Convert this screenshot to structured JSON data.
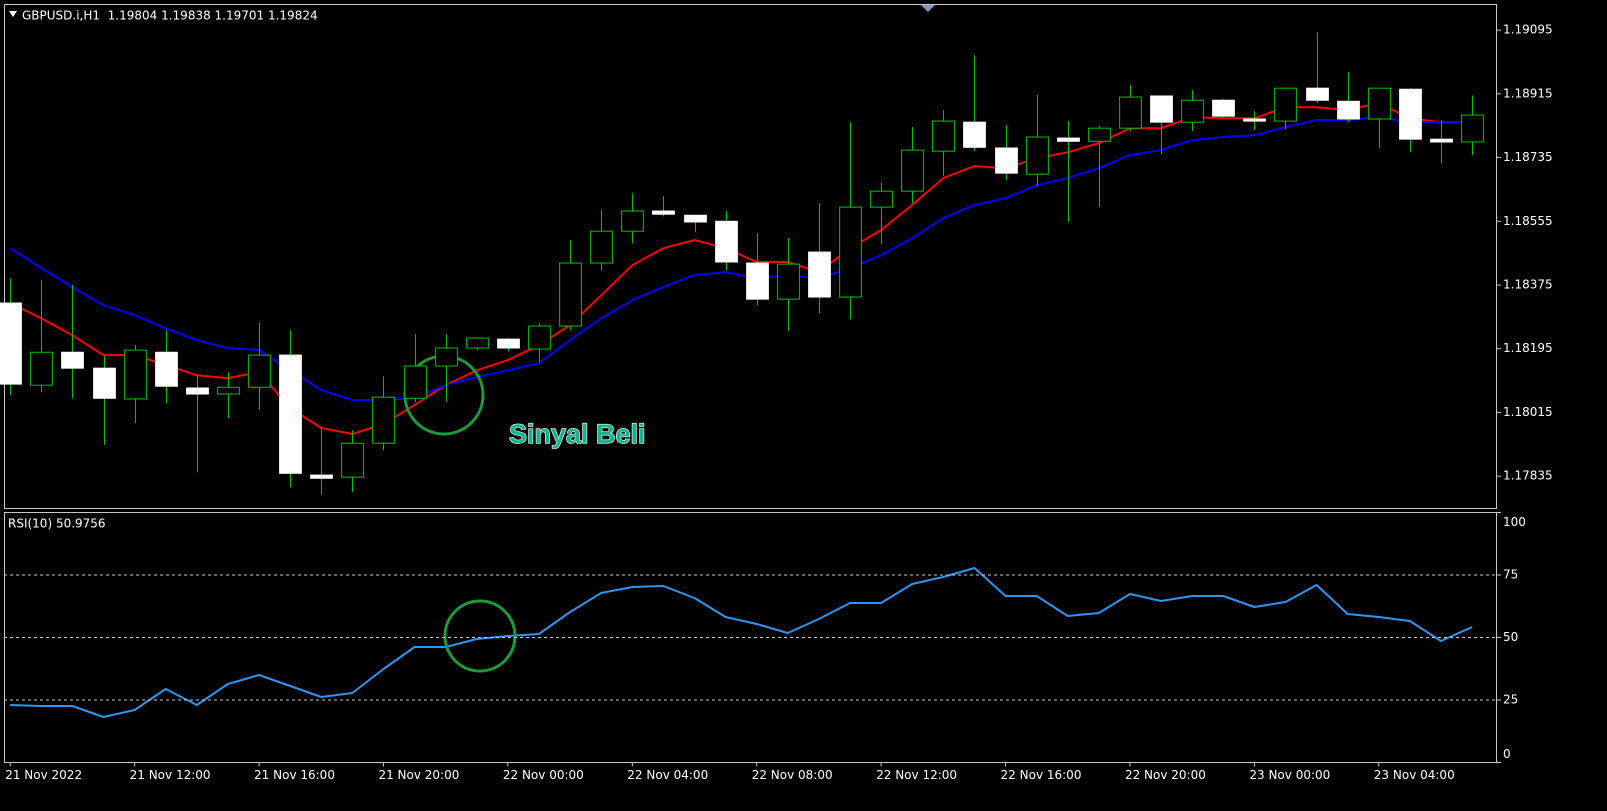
{
  "chart_data": [
    {
      "type": "candlestick",
      "title": "GBPUSD.i,H1  1.19804 1.19838 1.19701 1.19824",
      "annotation": "Sinyal Beli",
      "up_color": "#00c000",
      "down_color": "#ffffff",
      "open": [
        1.18324,
        1.18092,
        1.18185,
        1.1814,
        1.18053,
        1.18185,
        1.18084,
        1.18067,
        1.18086,
        1.18177,
        1.17838,
        1.17832,
        1.17928,
        1.18055,
        1.18146,
        1.18197,
        1.18222,
        1.18194,
        1.18259,
        1.18437,
        1.18527,
        1.18584,
        1.18572,
        1.18555,
        1.18437,
        1.18335,
        1.18468,
        1.18341,
        1.18595,
        1.1864,
        1.18753,
        1.18835,
        1.18762,
        1.18688,
        1.1879,
        1.18781,
        1.18818,
        1.18909,
        1.18835,
        1.18897,
        1.18844,
        1.18838,
        1.18931,
        1.18894,
        1.18844,
        1.18928,
        1.18787,
        1.18779
      ],
      "high": [
        1.18394,
        1.18389,
        1.18375,
        1.18177,
        1.18205,
        1.18247,
        1.1812,
        1.18129,
        1.1827,
        1.18247,
        1.17971,
        1.17965,
        1.18117,
        1.18236,
        1.18236,
        1.18225,
        1.18225,
        1.18267,
        1.18502,
        1.18586,
        1.18634,
        1.18626,
        1.18572,
        1.18584,
        1.18521,
        1.18507,
        1.18606,
        1.18835,
        1.18663,
        1.18821,
        1.18869,
        1.19024,
        1.18827,
        1.18911,
        1.18838,
        1.18824,
        1.1894,
        1.18909,
        1.18926,
        1.189,
        1.18866,
        1.18931,
        1.19089,
        1.18976,
        1.18931,
        1.18931,
        1.18841,
        1.18911
      ],
      "low": [
        1.18064,
        1.18072,
        1.18055,
        1.17923,
        1.17985,
        1.18041,
        1.17846,
        1.17999,
        1.18022,
        1.17804,
        1.17784,
        1.1779,
        1.17908,
        1.18044,
        1.18044,
        1.18191,
        1.18188,
        1.18157,
        1.18247,
        1.18417,
        1.18493,
        1.18569,
        1.18524,
        1.18417,
        1.18318,
        1.18245,
        1.18295,
        1.18279,
        1.1849,
        1.18606,
        1.18683,
        1.18753,
        1.18671,
        1.18654,
        1.18553,
        1.18595,
        1.1881,
        1.18745,
        1.1881,
        1.18849,
        1.18813,
        1.18815,
        1.18889,
        1.18835,
        1.18762,
        1.1875,
        1.18719,
        1.18742
      ],
      "close": [
        1.18095,
        1.18185,
        1.1814,
        1.18055,
        1.18191,
        1.18089,
        1.18067,
        1.18086,
        1.18177,
        1.17843,
        1.17829,
        1.17928,
        1.18058,
        1.18146,
        1.18197,
        1.18225,
        1.18197,
        1.18259,
        1.18437,
        1.18527,
        1.18584,
        1.18575,
        1.18553,
        1.1844,
        1.18335,
        1.18434,
        1.18341,
        1.18595,
        1.1864,
        1.18756,
        1.18838,
        1.18764,
        1.18691,
        1.18793,
        1.18781,
        1.18818,
        1.18906,
        1.18835,
        1.18897,
        1.18852,
        1.18838,
        1.18931,
        1.18897,
        1.18844,
        1.18931,
        1.18787,
        1.18779,
        1.18855
      ],
      "series": [
        {
          "color": "#ff0000",
          "values": [
            1.18324,
            1.18281,
            1.18233,
            1.18177,
            1.18177,
            1.18149,
            1.1812,
            1.18112,
            1.18129,
            1.18027,
            1.17971,
            1.17954,
            1.17982,
            1.18036,
            1.18092,
            1.18134,
            1.18163,
            1.18205,
            1.18262,
            1.18346,
            1.18431,
            1.18479,
            1.18502,
            1.18479,
            1.1844,
            1.1844,
            1.18411,
            1.18479,
            1.1853,
            1.18601,
            1.18677,
            1.18711,
            1.18705,
            1.18733,
            1.1875,
            1.18776,
            1.18818,
            1.18818,
            1.18849,
            1.18846,
            1.18846,
            1.18877,
            1.18877,
            1.18869,
            1.18889,
            1.18846,
            1.18835,
            1.18835
          ]
        },
        {
          "color": "#0000ff",
          "values": [
            1.18479,
            1.18423,
            1.18369,
            1.18318,
            1.1829,
            1.18253,
            1.18219,
            1.18197,
            1.18191,
            1.18134,
            1.18078,
            1.1805,
            1.1805,
            1.18055,
            1.18092,
            1.18115,
            1.18134,
            1.18154,
            1.18219,
            1.18281,
            1.18332,
            1.18369,
            1.18403,
            1.18411,
            1.18394,
            1.18403,
            1.18394,
            1.18423,
            1.18459,
            1.18507,
            1.18564,
            1.18601,
            1.1862,
            1.18657,
            1.18677,
            1.18705,
            1.18742,
            1.18756,
            1.18784,
            1.18793,
            1.18798,
            1.18821,
            1.18841,
            1.18841,
            1.18849,
            1.18835,
            1.18835,
            1.18835
          ]
        }
      ],
      "xlim": [
        -0.2,
        47.8
      ],
      "ylim": [
        1.17745,
        1.19166
      ],
      "yticks": [
        1.17835,
        1.18015,
        1.18195,
        1.18375,
        1.18555,
        1.18735,
        1.18915,
        1.19095
      ],
      "grid": false
    },
    {
      "type": "line",
      "title": "RSI(10) 50.9756",
      "series": [
        {
          "color": "#2f95f0",
          "values": [
            23,
            22.6,
            22.6,
            18.2,
            21,
            29.4,
            23,
            31.4,
            35,
            30.6,
            26.2,
            27.8,
            37.4,
            46.2,
            46.2,
            49.4,
            50.6,
            51.4,
            60.2,
            67.8,
            70.2,
            70.6,
            65.8,
            58.2,
            55.4,
            51.8,
            57.4,
            63.8,
            63.8,
            71.4,
            74.2,
            77.8,
            66.6,
            66.6,
            58.6,
            59.8,
            67.4,
            64.6,
            66.6,
            66.6,
            62.2,
            64.2,
            71,
            59.4,
            58.2,
            56.6,
            48.6,
            54.2
          ]
        }
      ],
      "xlim": [
        -0.2,
        47.8
      ],
      "xticks": [
        {
          "value": 0,
          "label": "21 Nov 2022"
        },
        {
          "value": 4,
          "label": "21 Nov 12:00"
        },
        {
          "value": 8,
          "label": "21 Nov 16:00"
        },
        {
          "value": 12,
          "label": "21 Nov 20:00"
        },
        {
          "value": 16,
          "label": "22 Nov 00:00"
        },
        {
          "value": 20,
          "label": "22 Nov 04:00"
        },
        {
          "value": 24,
          "label": "22 Nov 08:00"
        },
        {
          "value": 28,
          "label": "22 Nov 12:00"
        },
        {
          "value": 32,
          "label": "22 Nov 16:00"
        },
        {
          "value": 36,
          "label": "22 Nov 20:00"
        },
        {
          "value": 40,
          "label": "23 Nov 00:00"
        },
        {
          "value": 44,
          "label": "23 Nov 04:00"
        }
      ],
      "ylim": [
        0,
        100
      ],
      "yticks": [
        0,
        25,
        50,
        75,
        100
      ],
      "grid": true
    }
  ]
}
